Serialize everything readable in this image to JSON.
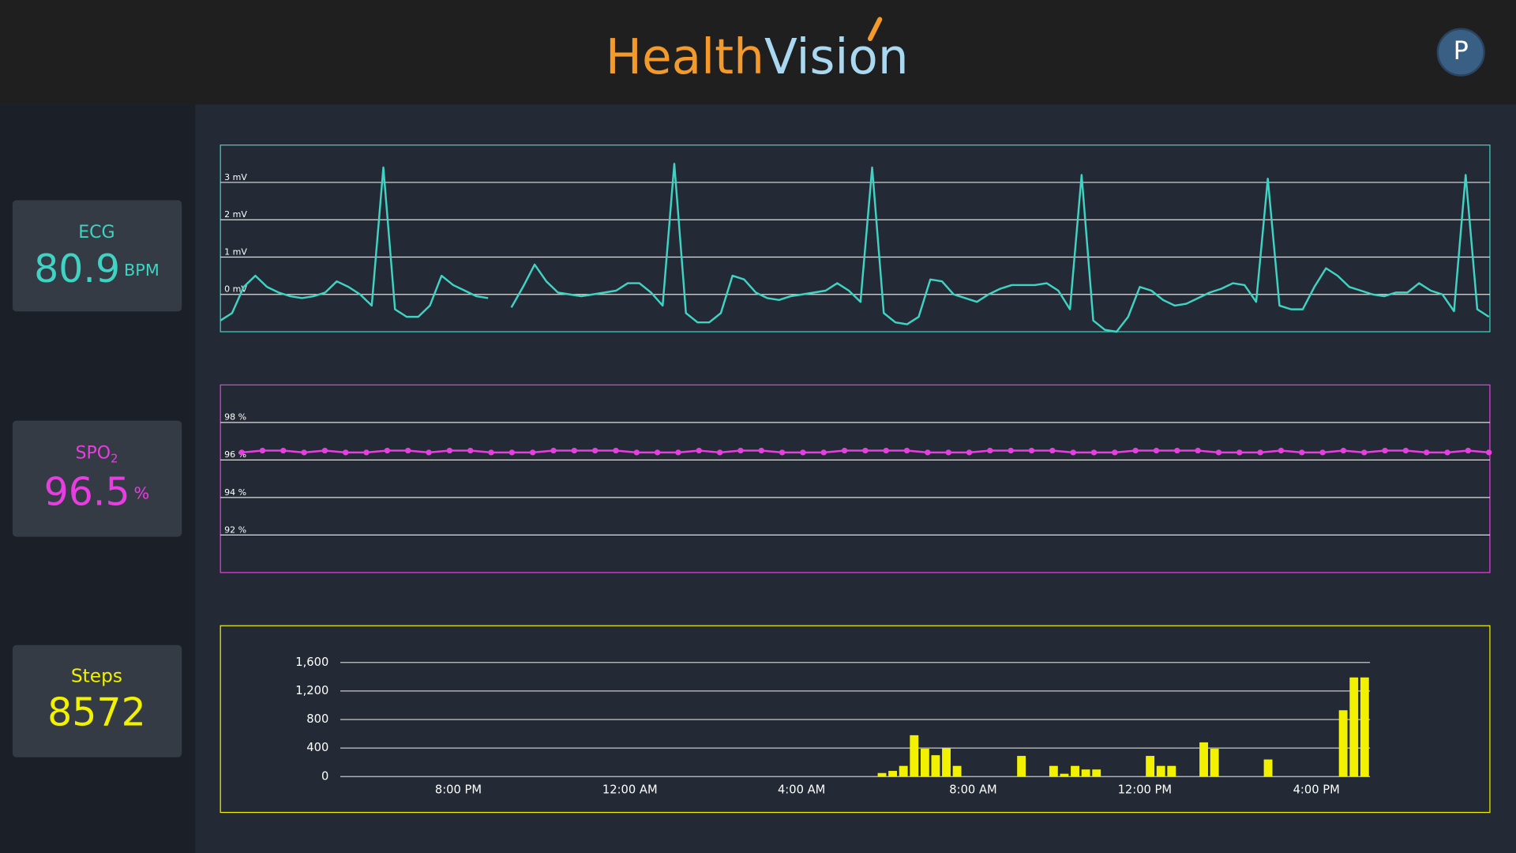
{
  "header": {
    "logo_left": "Health",
    "logo_right": "Vision",
    "avatar": "P"
  },
  "cards": [
    {
      "label": "ECG",
      "value": 80.9,
      "unit": "BPM"
    },
    {
      "label": "SPO",
      "label_sub": "2",
      "value": 96.5,
      "unit": "%"
    },
    {
      "label": "Steps",
      "value": 8572
    }
  ],
  "chart_data": [
    {
      "type": "line",
      "color": "#3fd3c3",
      "grid": true,
      "ylim": [
        -1,
        4
      ],
      "yticks": [
        {
          "value": 0,
          "label": "0 mV"
        },
        {
          "value": 1,
          "label": "1 mV"
        },
        {
          "value": 2,
          "label": "2 mV"
        },
        {
          "value": 3,
          "label": "3 mV"
        }
      ],
      "values": [
        -0.7,
        -0.5,
        0.2,
        0.5,
        0.2,
        0.05,
        -0.05,
        -0.1,
        -0.05,
        0.05,
        0.35,
        0.2,
        0.0,
        -0.3,
        3.4,
        -0.4,
        -0.6,
        -0.6,
        -0.3,
        0.5,
        0.25,
        0.1,
        -0.05,
        -0.1,
        null,
        -0.35,
        0.2,
        0.8,
        0.35,
        0.05,
        0.0,
        -0.05,
        0.0,
        0.05,
        0.1,
        0.3,
        0.3,
        0.05,
        -0.3,
        3.5,
        -0.5,
        -0.75,
        -0.75,
        -0.5,
        0.5,
        0.4,
        0.05,
        -0.1,
        -0.15,
        -0.05,
        0.0,
        0.05,
        0.1,
        0.3,
        0.1,
        -0.2,
        3.4,
        -0.5,
        -0.75,
        -0.8,
        -0.6,
        0.4,
        0.35,
        0.0,
        -0.1,
        -0.2,
        0.0,
        0.15,
        0.25,
        0.25,
        0.25,
        0.3,
        0.1,
        -0.4,
        3.2,
        -0.7,
        -0.95,
        -1.0,
        -0.6,
        0.2,
        0.1,
        -0.15,
        -0.3,
        -0.25,
        -0.1,
        0.05,
        0.15,
        0.3,
        0.25,
        -0.2,
        3.1,
        -0.3,
        -0.4,
        -0.4,
        0.2,
        0.7,
        0.5,
        0.2,
        0.1,
        0.0,
        -0.05,
        0.05,
        0.05,
        0.3,
        0.1,
        0.0,
        -0.45,
        3.2,
        -0.4,
        -0.6
      ]
    },
    {
      "type": "line",
      "color": "#e83de0",
      "markers": true,
      "grid": true,
      "ylim": [
        90,
        100
      ],
      "yticks": [
        {
          "value": 92,
          "label": "92 %"
        },
        {
          "value": 94,
          "label": "94 %"
        },
        {
          "value": 96,
          "label": "96 %"
        },
        {
          "value": 98,
          "label": "98 %"
        }
      ],
      "values": [
        96.4,
        96.5,
        96.5,
        96.4,
        96.5,
        96.4,
        96.4,
        96.5,
        96.5,
        96.4,
        96.5,
        96.5,
        96.4,
        96.4,
        96.4,
        96.5,
        96.5,
        96.5,
        96.5,
        96.4,
        96.4,
        96.4,
        96.5,
        96.4,
        96.5,
        96.5,
        96.4,
        96.4,
        96.4,
        96.5,
        96.5,
        96.5,
        96.5,
        96.4,
        96.4,
        96.4,
        96.5,
        96.5,
        96.5,
        96.5,
        96.4,
        96.4,
        96.4,
        96.5,
        96.5,
        96.5,
        96.5,
        96.4,
        96.4,
        96.4,
        96.5,
        96.4,
        96.4,
        96.5,
        96.4,
        96.5,
        96.5,
        96.4,
        96.4,
        96.5,
        96.4
      ]
    },
    {
      "type": "bar",
      "color": "#f2f200",
      "grid": true,
      "ylim": [
        0,
        1600
      ],
      "yticks": [
        0,
        {
          "value": 400,
          "label": "400"
        },
        {
          "value": 800,
          "label": "800"
        },
        {
          "value": 1200,
          "label": "1,200"
        },
        {
          "value": 1600,
          "label": "1,600"
        }
      ],
      "categories": [
        null,
        null,
        null,
        null,
        null,
        null,
        null,
        null,
        null,
        null,
        null,
        "8:00 PM",
        null,
        null,
        null,
        null,
        null,
        null,
        null,
        null,
        null,
        null,
        null,
        null,
        null,
        null,
        null,
        "12:00 AM",
        null,
        null,
        null,
        null,
        null,
        null,
        null,
        null,
        null,
        null,
        null,
        null,
        null,
        null,
        null,
        "4:00 AM",
        null,
        null,
        null,
        null,
        null,
        null,
        null,
        null,
        null,
        null,
        null,
        null,
        null,
        null,
        null,
        "8:00 AM",
        null,
        null,
        null,
        null,
        null,
        null,
        null,
        null,
        null,
        null,
        null,
        null,
        null,
        null,
        null,
        "12:00 PM",
        null,
        null,
        null,
        null,
        null,
        null,
        null,
        null,
        null,
        null,
        null,
        null,
        null,
        null,
        null,
        "4:00 PM",
        null,
        null,
        null,
        null
      ],
      "values": [
        0,
        0,
        0,
        0,
        0,
        0,
        0,
        0,
        0,
        0,
        0,
        0,
        0,
        0,
        0,
        0,
        0,
        0,
        0,
        0,
        0,
        0,
        0,
        0,
        0,
        0,
        0,
        0,
        0,
        0,
        0,
        0,
        0,
        0,
        0,
        0,
        0,
        0,
        0,
        0,
        0,
        0,
        0,
        0,
        0,
        0,
        0,
        0,
        0,
        0,
        50,
        80,
        150,
        580,
        390,
        300,
        400,
        150,
        0,
        0,
        0,
        0,
        0,
        290,
        0,
        0,
        150,
        40,
        150,
        100,
        100,
        0,
        0,
        0,
        0,
        290,
        150,
        150,
        0,
        0,
        480,
        390,
        0,
        0,
        0,
        0,
        240,
        0,
        0,
        0,
        0,
        0,
        0,
        930,
        1390,
        1390
      ]
    }
  ]
}
